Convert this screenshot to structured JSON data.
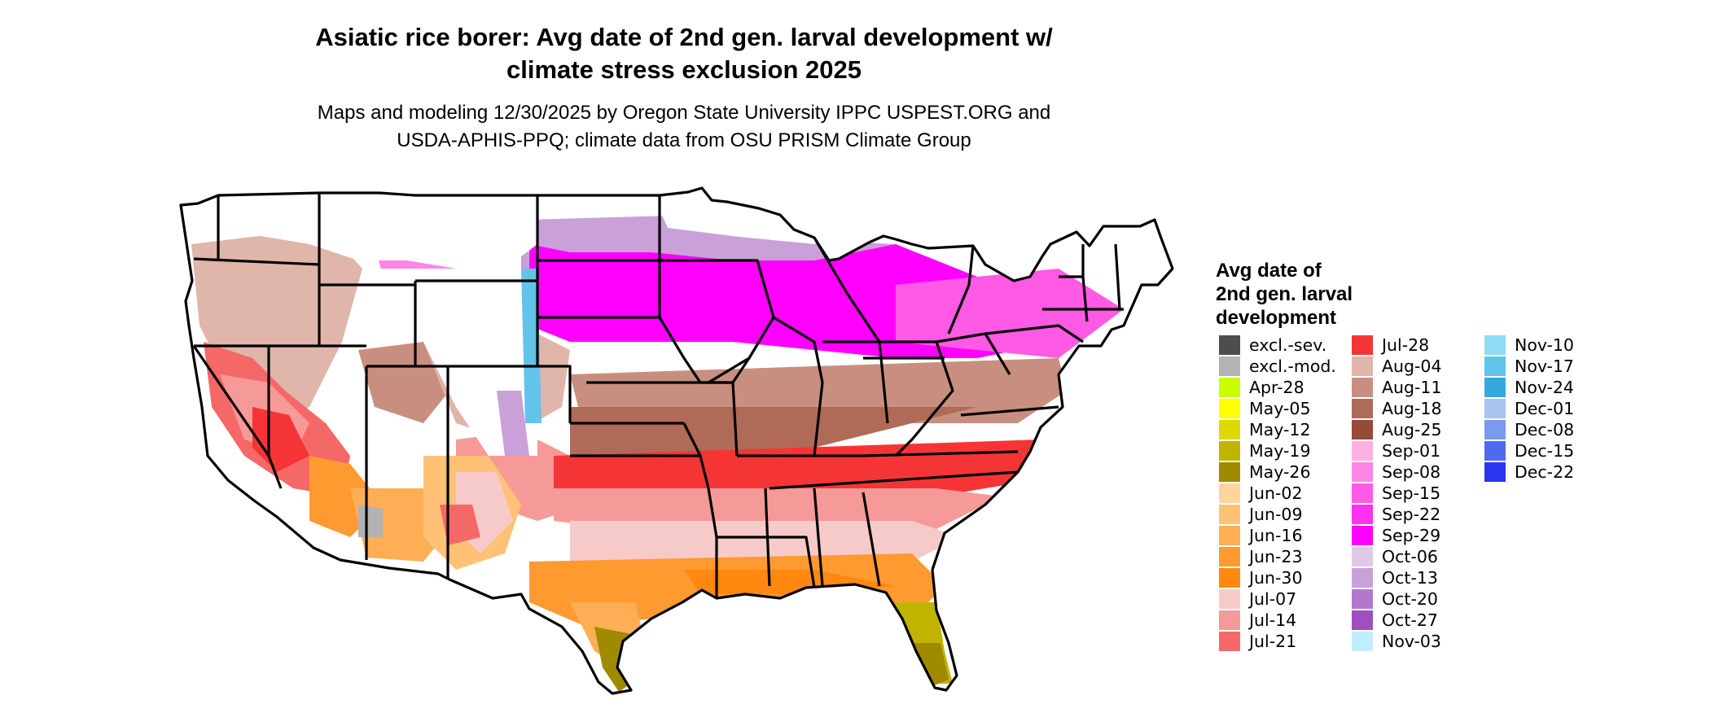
{
  "title": {
    "line1": "Asiatic rice borer: Avg date of 2nd gen. larval development w/",
    "line2": "climate stress exclusion 2025"
  },
  "subtitle": {
    "line1": "Maps and modeling 12/30/2025 by Oregon State University IPPC USPEST.ORG and",
    "line2": "USDA-APHIS-PPQ; climate data from OSU PRISM Climate Group"
  },
  "legend": {
    "title_lines": [
      "Avg date of",
      "2nd gen. larval",
      "development"
    ],
    "columns": [
      [
        {
          "label": "excl.-sev.",
          "color": "#4d4d4d"
        },
        {
          "label": "excl.-mod.",
          "color": "#b3b3b3"
        },
        {
          "label": "Apr-28",
          "color": "#c8ff00"
        },
        {
          "label": "May-05",
          "color": "#ffff00"
        },
        {
          "label": "May-12",
          "color": "#e0d900"
        },
        {
          "label": "May-19",
          "color": "#c0b400"
        },
        {
          "label": "May-26",
          "color": "#a08a00"
        },
        {
          "label": "Jun-02",
          "color": "#ffd599"
        },
        {
          "label": "Jun-09",
          "color": "#ffc175"
        },
        {
          "label": "Jun-16",
          "color": "#ffae55"
        },
        {
          "label": "Jun-23",
          "color": "#ff9a30"
        },
        {
          "label": "Jun-30",
          "color": "#ff8810"
        },
        {
          "label": "Jul-07",
          "color": "#f7caca"
        },
        {
          "label": "Jul-14",
          "color": "#f59999"
        },
        {
          "label": "Jul-21",
          "color": "#f56868"
        }
      ],
      [
        {
          "label": "Jul-28",
          "color": "#f53535"
        },
        {
          "label": "Aug-04",
          "color": "#e0b5aa"
        },
        {
          "label": "Aug-11",
          "color": "#c88f80"
        },
        {
          "label": "Aug-18",
          "color": "#b06a58"
        },
        {
          "label": "Aug-25",
          "color": "#964a38"
        },
        {
          "label": "Sep-01",
          "color": "#ffb0e0"
        },
        {
          "label": "Sep-08",
          "color": "#ff85e5"
        },
        {
          "label": "Sep-15",
          "color": "#ff5ae5"
        },
        {
          "label": "Sep-22",
          "color": "#ff30f0"
        },
        {
          "label": "Sep-29",
          "color": "#ff00ff"
        },
        {
          "label": "Oct-06",
          "color": "#e0c8e8"
        },
        {
          "label": "Oct-13",
          "color": "#c9a0d8"
        },
        {
          "label": "Oct-20",
          "color": "#b378cc"
        },
        {
          "label": "Oct-27",
          "color": "#9e50c0"
        },
        {
          "label": "Nov-03",
          "color": "#bfeeff"
        }
      ],
      [
        {
          "label": "Nov-10",
          "color": "#90dcf5"
        },
        {
          "label": "Nov-17",
          "color": "#62c4eb"
        },
        {
          "label": "Nov-24",
          "color": "#35a8e0"
        },
        {
          "label": "Dec-01",
          "color": "#a9c3ee"
        },
        {
          "label": "Dec-08",
          "color": "#7a9aee"
        },
        {
          "label": "Dec-15",
          "color": "#4f6aee"
        },
        {
          "label": "Dec-22",
          "color": "#2a35f0"
        }
      ]
    ]
  }
}
